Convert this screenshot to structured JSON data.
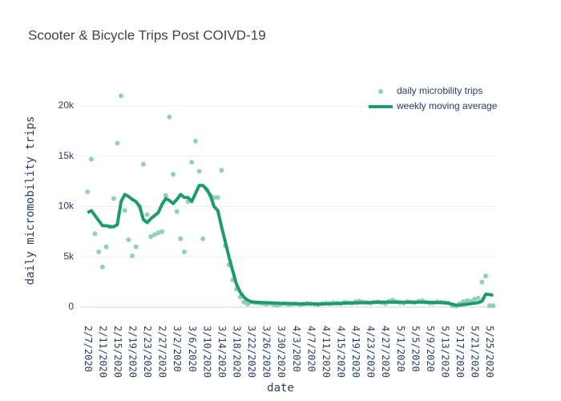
{
  "chart_data": {
    "type": "scatter",
    "title": "Scooter & Bicycle Trips Post COIVD-19",
    "x_label": "date",
    "y_label": "daily micromobility trips",
    "x": [
      "2020-02-07",
      "2020-02-08",
      "2020-02-09",
      "2020-02-10",
      "2020-02-11",
      "2020-02-12",
      "2020-02-13",
      "2020-02-14",
      "2020-02-15",
      "2020-02-16",
      "2020-02-17",
      "2020-02-18",
      "2020-02-19",
      "2020-02-20",
      "2020-02-21",
      "2020-02-22",
      "2020-02-23",
      "2020-02-24",
      "2020-02-25",
      "2020-02-26",
      "2020-02-27",
      "2020-02-28",
      "2020-02-29",
      "2020-03-01",
      "2020-03-02",
      "2020-03-03",
      "2020-03-04",
      "2020-03-05",
      "2020-03-06",
      "2020-03-07",
      "2020-03-08",
      "2020-03-09",
      "2020-03-10",
      "2020-03-11",
      "2020-03-12",
      "2020-03-13",
      "2020-03-14",
      "2020-03-15",
      "2020-03-16",
      "2020-03-17",
      "2020-03-18",
      "2020-03-19",
      "2020-03-20",
      "2020-03-21",
      "2020-03-22",
      "2020-03-23",
      "2020-03-24",
      "2020-03-25",
      "2020-03-26",
      "2020-03-27",
      "2020-03-28",
      "2020-03-29",
      "2020-03-30",
      "2020-03-31",
      "2020-04-01",
      "2020-04-02",
      "2020-04-03",
      "2020-04-04",
      "2020-04-05",
      "2020-04-06",
      "2020-04-07",
      "2020-04-08",
      "2020-04-09",
      "2020-04-10",
      "2020-04-11",
      "2020-04-12",
      "2020-04-13",
      "2020-04-14",
      "2020-04-15",
      "2020-04-16",
      "2020-04-17",
      "2020-04-18",
      "2020-04-19",
      "2020-04-20",
      "2020-04-21",
      "2020-04-22",
      "2020-04-23",
      "2020-04-24",
      "2020-04-25",
      "2020-04-26",
      "2020-04-27",
      "2020-04-28",
      "2020-04-29",
      "2020-04-30",
      "2020-05-01",
      "2020-05-02",
      "2020-05-03",
      "2020-05-04",
      "2020-05-05",
      "2020-05-06",
      "2020-05-07",
      "2020-05-08",
      "2020-05-09",
      "2020-05-10",
      "2020-05-11",
      "2020-05-12",
      "2020-05-13",
      "2020-05-14",
      "2020-05-15",
      "2020-05-16",
      "2020-05-17",
      "2020-05-18",
      "2020-05-19",
      "2020-05-20",
      "2020-05-21",
      "2020-05-22",
      "2020-05-23",
      "2020-05-24",
      "2020-05-25",
      "2020-05-26"
    ],
    "series": [
      {
        "name": "daily microbility trips",
        "mode": "markers",
        "color": "#7fcaa6",
        "values": [
          11470,
          14700,
          7300,
          5500,
          4000,
          6000,
          8000,
          10800,
          16300,
          21000,
          9600,
          6700,
          5100,
          6000,
          10000,
          14200,
          9200,
          7000,
          7200,
          7400,
          7500,
          11100,
          18900,
          13200,
          9500,
          6800,
          5500,
          10500,
          14400,
          16500,
          13500,
          6800,
          11700,
          11100,
          10900,
          10900,
          13600,
          6100,
          4200,
          2700,
          1800,
          1000,
          500,
          300,
          500,
          450,
          400,
          350,
          300,
          350,
          250,
          200,
          300,
          350,
          250,
          300,
          350,
          250,
          300,
          400,
          350,
          300,
          250,
          350,
          400,
          350,
          450,
          400,
          350,
          500,
          450,
          400,
          550,
          600,
          500,
          450,
          400,
          500,
          550,
          450,
          350,
          600,
          700,
          550,
          450,
          400,
          550,
          500,
          450,
          600,
          650,
          500,
          400,
          450,
          550,
          500,
          450,
          400,
          150,
          100,
          350,
          550,
          650,
          600,
          800,
          900,
          2500,
          3100,
          150,
          150
        ]
      },
      {
        "name": "weekly moving average",
        "mode": "lines",
        "color": "#1e9b6e",
        "values": [
          9400,
          9600,
          9100,
          8600,
          8100,
          8100,
          8000,
          8000,
          8200,
          10500,
          11200,
          11000,
          10700,
          10500,
          10000,
          8700,
          8400,
          8800,
          9100,
          9400,
          10200,
          10800,
          10600,
          10300,
          10700,
          11200,
          10900,
          10900,
          10500,
          11300,
          12100,
          12100,
          11700,
          11100,
          10000,
          9600,
          8000,
          6500,
          5000,
          3600,
          2300,
          1500,
          1000,
          700,
          550,
          500,
          480,
          460,
          450,
          440,
          420,
          400,
          390,
          380,
          370,
          360,
          350,
          340,
          330,
          330,
          320,
          320,
          310,
          320,
          330,
          340,
          350,
          370,
          390,
          400,
          410,
          420,
          430,
          440,
          450,
          460,
          470,
          480,
          490,
          500,
          500,
          510,
          510,
          500,
          500,
          500,
          500,
          490,
          490,
          500,
          500,
          490,
          480,
          470,
          460,
          450,
          440,
          400,
          300,
          200,
          200,
          250,
          300,
          350,
          400,
          450,
          600,
          1300,
          1250,
          1200
        ]
      }
    ],
    "xlim": [
      "2020-02-05",
      "2020-05-27"
    ],
    "xticks": [
      {
        "value": "2020-02-07",
        "label": "2/7/2020"
      },
      {
        "value": "2020-02-11",
        "label": "2/11/2020"
      },
      {
        "value": "2020-02-15",
        "label": "2/15/2020"
      },
      {
        "value": "2020-02-19",
        "label": "2/19/2020"
      },
      {
        "value": "2020-02-23",
        "label": "2/23/2020"
      },
      {
        "value": "2020-02-27",
        "label": "2/27/2020"
      },
      {
        "value": "2020-03-02",
        "label": "3/2/2020"
      },
      {
        "value": "2020-03-06",
        "label": "3/6/2020"
      },
      {
        "value": "2020-03-10",
        "label": "3/10/2020"
      },
      {
        "value": "2020-03-14",
        "label": "3/14/2020"
      },
      {
        "value": "2020-03-18",
        "label": "3/18/2020"
      },
      {
        "value": "2020-03-22",
        "label": "3/22/2020"
      },
      {
        "value": "2020-03-26",
        "label": "3/26/2020"
      },
      {
        "value": "2020-03-30",
        "label": "3/30/2020"
      },
      {
        "value": "2020-04-03",
        "label": "4/3/2020"
      },
      {
        "value": "2020-04-07",
        "label": "4/7/2020"
      },
      {
        "value": "2020-04-11",
        "label": "4/11/2020"
      },
      {
        "value": "2020-04-15",
        "label": "4/15/2020"
      },
      {
        "value": "2020-04-19",
        "label": "4/19/2020"
      },
      {
        "value": "2020-04-23",
        "label": "4/23/2020"
      },
      {
        "value": "2020-04-27",
        "label": "4/27/2020"
      },
      {
        "value": "2020-05-01",
        "label": "5/1/2020"
      },
      {
        "value": "2020-05-05",
        "label": "5/5/2020"
      },
      {
        "value": "2020-05-09",
        "label": "5/9/2020"
      },
      {
        "value": "2020-05-13",
        "label": "5/13/2020"
      },
      {
        "value": "2020-05-17",
        "label": "5/17/2020"
      },
      {
        "value": "2020-05-21",
        "label": "5/21/2020"
      },
      {
        "value": "2020-05-25",
        "label": "5/25/2020"
      }
    ],
    "ylim": [
      -1350,
      22550
    ],
    "yticks": [
      0,
      {
        "value": 5000,
        "label": "5k"
      },
      {
        "value": 10000,
        "label": "10k"
      },
      {
        "value": 15000,
        "label": "15k"
      },
      {
        "value": 20000,
        "label": "20k"
      }
    ],
    "grid": true,
    "legend": "top right"
  }
}
